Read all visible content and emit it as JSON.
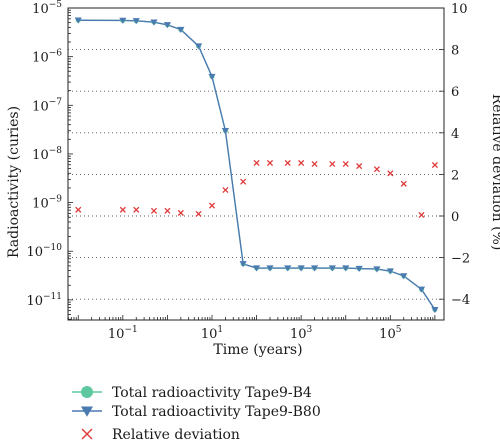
{
  "chart_data": {
    "type": "line",
    "xlabel": "Time (years)",
    "ylabel_left": "Radioactivity (curies)",
    "ylabel_right": "Relative deviation (%)",
    "x_scale": "log",
    "y_left_scale": "log",
    "xlim": [
      0.00589,
      1600000
    ],
    "ylim_left": [
      3.86e-12,
      1e-05
    ],
    "ylim_right": [
      -5,
      10
    ],
    "x_ticks": [
      {
        "value": 0.1,
        "base": "10",
        "exp": "−1"
      },
      {
        "value": 10,
        "base": "10",
        "exp": "1"
      },
      {
        "value": 1000,
        "base": "10",
        "exp": "3"
      },
      {
        "value": 100000,
        "base": "10",
        "exp": "5"
      }
    ],
    "y_left_ticks": [
      {
        "value": 1e-05,
        "base": "10",
        "exp": "−5"
      },
      {
        "value": 1e-06,
        "base": "10",
        "exp": "−6"
      },
      {
        "value": 1e-07,
        "base": "10",
        "exp": "−7"
      },
      {
        "value": 1e-08,
        "base": "10",
        "exp": "−8"
      },
      {
        "value": 1e-09,
        "base": "10",
        "exp": "−9"
      },
      {
        "value": 1e-10,
        "base": "10",
        "exp": "−10"
      },
      {
        "value": 1e-11,
        "base": "10",
        "exp": "−11"
      }
    ],
    "y_right_ticks": [
      {
        "value": 10,
        "label": "10"
      },
      {
        "value": 8,
        "label": "8"
      },
      {
        "value": 6,
        "label": "6"
      },
      {
        "value": 4,
        "label": "4"
      },
      {
        "value": 2,
        "label": "2"
      },
      {
        "value": 0,
        "label": "0"
      },
      {
        "value": -2,
        "label": "−2"
      },
      {
        "value": -4,
        "label": "−4"
      }
    ],
    "grid": "horizontal dotted at right-axis ticks",
    "legend_position": "bottom",
    "series": [
      {
        "name": "Total radioactivity Tape9-B4",
        "axis": "left",
        "marker": "circle",
        "color": "#5fc8a0",
        "x": [
          0.01,
          0.1,
          0.2,
          0.5,
          1,
          2,
          5,
          10,
          20,
          50,
          100,
          200,
          500,
          1000,
          2000,
          5000,
          10000,
          20000,
          50000,
          100000,
          200000,
          500000,
          1000000
        ],
        "y": [
          5.6e-06,
          5.55e-06,
          5.45e-06,
          5.1e-06,
          4.5e-06,
          3.6e-06,
          1.65e-06,
          3.9e-07,
          3e-08,
          5.5e-11,
          4.5e-11,
          4.5e-11,
          4.5e-11,
          4.5e-11,
          4.5e-11,
          4.5e-11,
          4.5e-11,
          4.4e-11,
          4.3e-11,
          3.9e-11,
          3.1e-11,
          1.65e-11,
          6.3e-12
        ]
      },
      {
        "name": "Total radioactivity Tape9-B80",
        "axis": "left",
        "marker": "triangle-down",
        "color": "#4a7ab0",
        "x": [
          0.01,
          0.1,
          0.2,
          0.5,
          1,
          2,
          5,
          10,
          20,
          50,
          100,
          200,
          500,
          1000,
          2000,
          5000,
          10000,
          20000,
          50000,
          100000,
          200000,
          500000,
          1000000
        ],
        "y": [
          5.6e-06,
          5.55e-06,
          5.45e-06,
          5.1e-06,
          4.5e-06,
          3.6e-06,
          1.65e-06,
          3.9e-07,
          3e-08,
          5.5e-11,
          4.5e-11,
          4.5e-11,
          4.5e-11,
          4.5e-11,
          4.5e-11,
          4.5e-11,
          4.5e-11,
          4.4e-11,
          4.3e-11,
          3.9e-11,
          3.1e-11,
          1.65e-11,
          6.3e-12
        ]
      },
      {
        "name": "Relative deviation",
        "axis": "right",
        "marker": "x",
        "color": "#e03a3a",
        "x": [
          0.01,
          0.1,
          0.2,
          0.5,
          1,
          2,
          5,
          10,
          20,
          50,
          100,
          200,
          500,
          1000,
          2000,
          5000,
          10000,
          20000,
          50000,
          100000,
          200000,
          500000,
          1000000
        ],
        "y": [
          0.3,
          0.3,
          0.3,
          0.25,
          0.25,
          0.15,
          0.1,
          0.5,
          1.25,
          1.65,
          2.55,
          2.55,
          2.55,
          2.55,
          2.5,
          2.5,
          2.5,
          2.4,
          2.25,
          2.05,
          1.55,
          0.05,
          2.45
        ]
      }
    ]
  }
}
